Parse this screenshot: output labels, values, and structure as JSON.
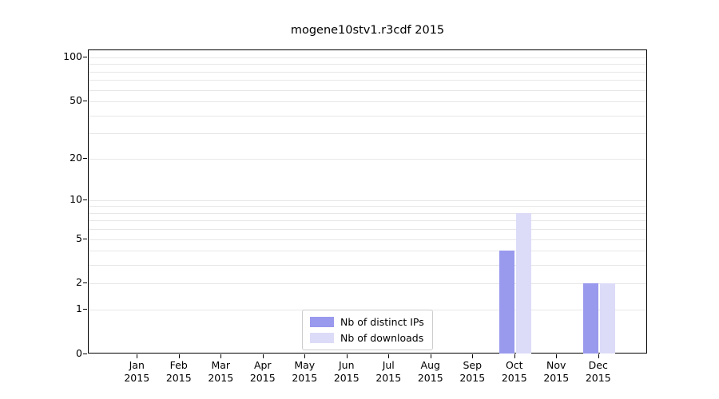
{
  "chart_data": {
    "type": "bar",
    "title": "mogene10stv1.r3cdf 2015",
    "scale": "log1p",
    "categories": [
      "Jan",
      "Feb",
      "Mar",
      "Apr",
      "May",
      "Jun",
      "Jul",
      "Aug",
      "Sep",
      "Oct",
      "Nov",
      "Dec"
    ],
    "year_label": "2015",
    "series": [
      {
        "name": "Nb of distinct IPs",
        "color": "#9999ee",
        "values": [
          0,
          0,
          0,
          0,
          0,
          0,
          0,
          0,
          0,
          4,
          0,
          2
        ]
      },
      {
        "name": "Nb of downloads",
        "color": "#dcdcf8",
        "values": [
          0,
          0,
          0,
          0,
          0,
          0,
          0,
          0,
          0,
          8,
          0,
          2
        ]
      }
    ],
    "yticks": [
      0,
      1,
      2,
      5,
      10,
      20,
      50,
      100
    ],
    "minor_gridlines": [
      1,
      2,
      3,
      4,
      5,
      6,
      7,
      8,
      9,
      10,
      20,
      30,
      40,
      50,
      60,
      70,
      80,
      90,
      100
    ],
    "ylim": [
      0,
      100
    ],
    "legend_position": "lower center",
    "grid": "on"
  }
}
